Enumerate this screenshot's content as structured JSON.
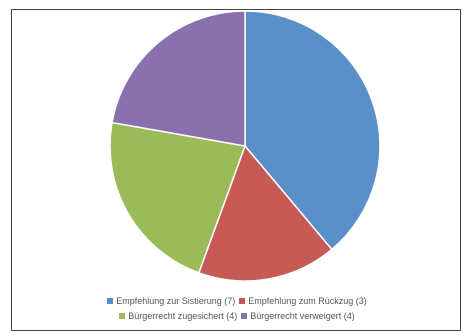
{
  "chart_data": {
    "type": "pie",
    "title": "",
    "series": [
      {
        "name": "Empfehlung zur Sistierung (7)",
        "value": 7,
        "color": "#5b8fc9"
      },
      {
        "name": "Empfehlung zum Rückzug (3)",
        "value": 3,
        "color": "#c85a55"
      },
      {
        "name": "Bürgerrecht zugesichert (4)",
        "value": 4,
        "color": "#9bbb59"
      },
      {
        "name": "Bürgerrecht verweigert (4)",
        "value": 4,
        "color": "#8a70ad"
      }
    ],
    "legend_position": "bottom"
  }
}
